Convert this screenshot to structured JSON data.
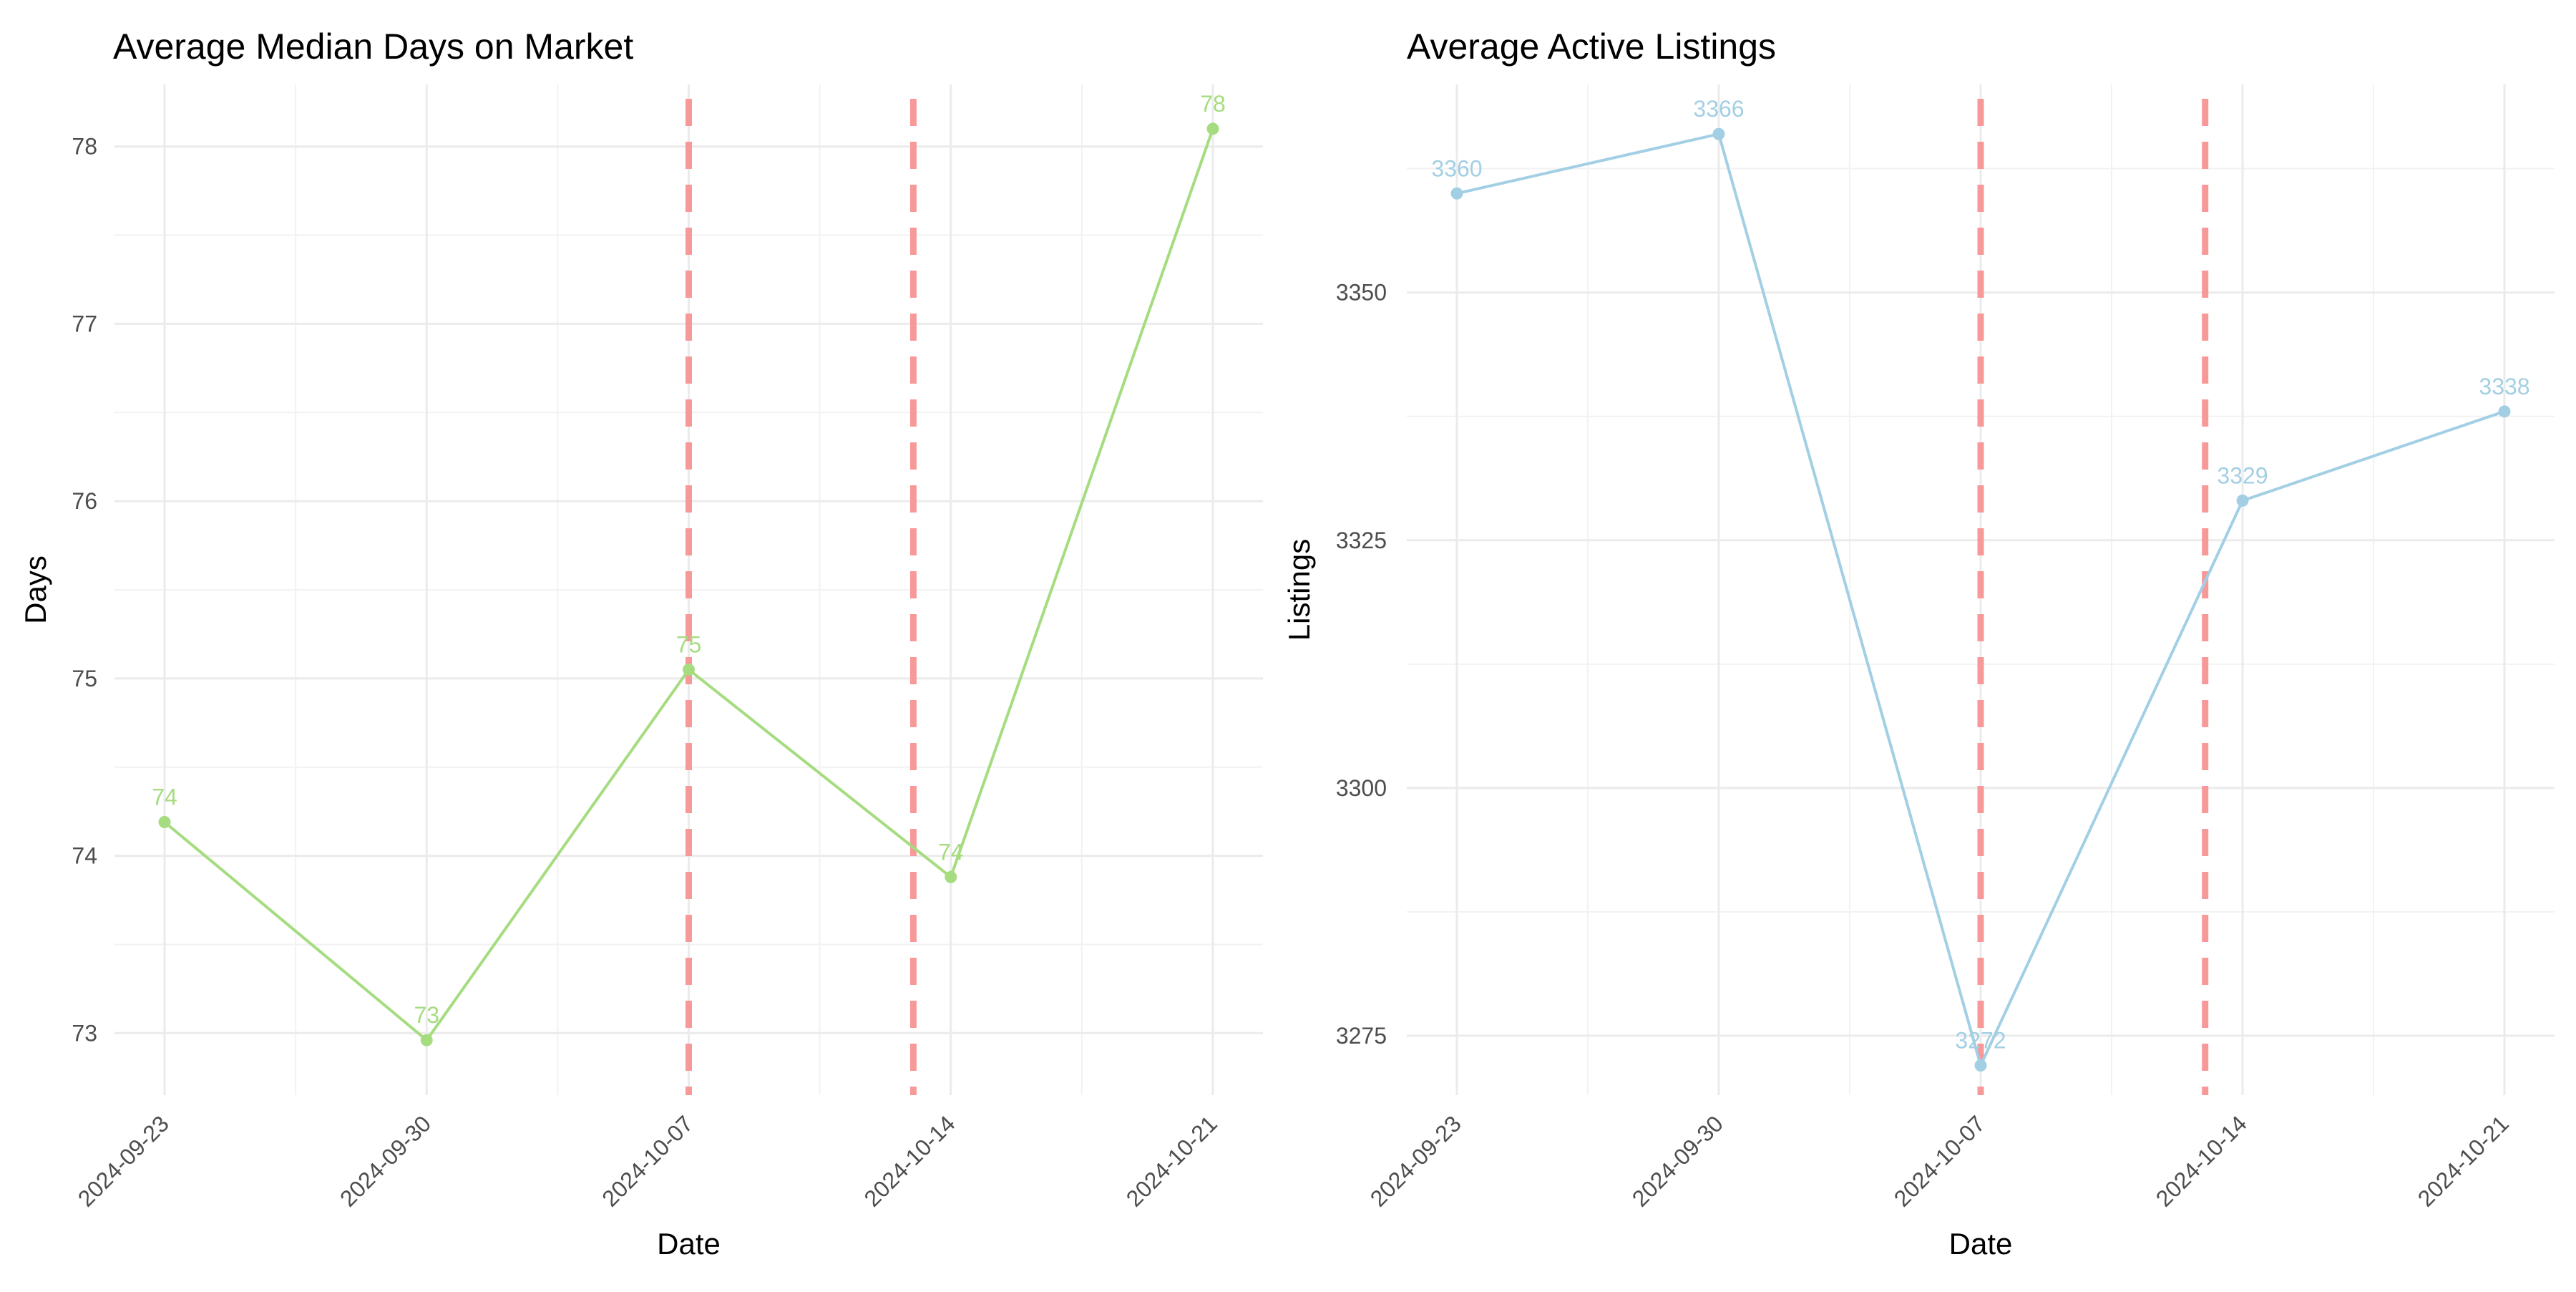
{
  "chart_data": [
    {
      "type": "line",
      "title": "Average Median Days on Market",
      "xlabel": "Date",
      "ylabel": "Days",
      "x": [
        "2024-09-23",
        "2024-09-30",
        "2024-10-07",
        "2024-10-14",
        "2024-10-21"
      ],
      "series": [
        {
          "values": [
            74.19,
            72.96,
            75.05,
            73.88,
            78.1
          ],
          "labels": [
            "74",
            "73",
            "75",
            "74",
            "78"
          ],
          "color": "#a6dc80"
        }
      ],
      "vlines": [
        "2024-10-07",
        "2024-10-13"
      ],
      "vline_color": "#f89999",
      "ylim": [
        72.65,
        78.35
      ],
      "yticks": [
        73,
        74,
        75,
        76,
        77,
        78
      ],
      "xlim": [
        "2024-09-23",
        "2024-10-21"
      ],
      "grid": true
    },
    {
      "type": "line",
      "title": "Average Active Listings",
      "xlabel": "Date",
      "ylabel": "Listings",
      "x": [
        "2024-09-23",
        "2024-09-30",
        "2024-10-07",
        "2024-10-14",
        "2024-10-21"
      ],
      "series": [
        {
          "values": [
            3360,
            3366,
            3272,
            3329,
            3338
          ],
          "labels": [
            "3360",
            "3366",
            "3272",
            "3329",
            "3338"
          ],
          "color": "#a3cfe4"
        }
      ],
      "vlines": [
        "2024-10-07",
        "2024-10-13"
      ],
      "vline_color": "#f89999",
      "ylim": [
        3269,
        3371
      ],
      "yticks": [
        3275,
        3300,
        3325,
        3350
      ],
      "xlim": [
        "2024-09-23",
        "2024-10-21"
      ],
      "grid": true
    }
  ]
}
